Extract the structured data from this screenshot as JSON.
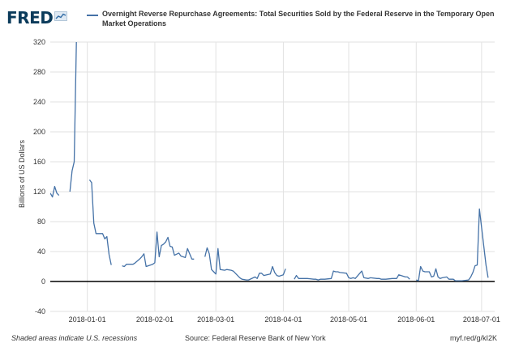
{
  "header": {
    "logo_text": "FRED",
    "logo_icon": "line-chart-icon",
    "legend_label": "Overnight Reverse Repurchase Agreements: Total Securities Sold by the Federal Reserve in the Temporary Open Market Operations",
    "series_color": "#4572a7"
  },
  "footer": {
    "recession_note": "Shaded areas indicate U.S. recessions",
    "source": "Source: Federal Reserve Bank of New York",
    "short_url": "myf.red/g/kI2K"
  },
  "chart_data": {
    "type": "line",
    "title": "Overnight Reverse Repurchase Agreements: Total Securities Sold by the Federal Reserve in the Temporary Open Market Operations",
    "ylabel": "Billions of US Dollars",
    "xlabel": "",
    "ylim": [
      -40,
      320
    ],
    "xlim": [
      "2017-12-15",
      "2018-07-07"
    ],
    "grid": true,
    "yticks": [
      -40,
      0,
      40,
      80,
      120,
      160,
      200,
      240,
      280,
      320
    ],
    "xticks": [
      "2018-01-01",
      "2018-02-01",
      "2018-03-01",
      "2018-04-01",
      "2018-05-01",
      "2018-06-01",
      "2018-07-01"
    ],
    "series": [
      {
        "color": "#4572a7",
        "segments": [
          [
            [
              "2017-12-15",
              118
            ],
            [
              "2017-12-16",
              113
            ],
            [
              "2017-12-17",
              127
            ],
            [
              "2017-12-18",
              118
            ],
            [
              "2017-12-19",
              115
            ]
          ],
          [
            [
              "2017-12-24",
              120
            ],
            [
              "2017-12-25",
              148
            ],
            [
              "2017-12-26",
              160
            ],
            [
              "2017-12-27",
              320
            ]
          ],
          [
            [
              "2018-01-02",
              136
            ],
            [
              "2018-01-03",
              132
            ],
            [
              "2018-01-04",
              78
            ],
            [
              "2018-01-05",
              64
            ],
            [
              "2018-01-08",
              64
            ],
            [
              "2018-01-09",
              57
            ],
            [
              "2018-01-10",
              60
            ],
            [
              "2018-01-11",
              36
            ],
            [
              "2018-01-12",
              22
            ]
          ],
          [
            [
              "2018-01-17",
              21
            ],
            [
              "2018-01-18",
              20
            ],
            [
              "2018-01-19",
              23
            ],
            [
              "2018-01-22",
              23
            ],
            [
              "2018-01-23",
              25
            ],
            [
              "2018-01-25",
              30
            ],
            [
              "2018-01-26",
              33
            ],
            [
              "2018-01-27",
              37
            ],
            [
              "2018-01-28",
              20
            ],
            [
              "2018-01-31",
              23
            ],
            [
              "2018-02-01",
              25
            ],
            [
              "2018-02-02",
              66
            ],
            [
              "2018-02-03",
              33
            ],
            [
              "2018-02-04",
              48
            ],
            [
              "2018-02-05",
              50
            ],
            [
              "2018-02-06",
              53
            ],
            [
              "2018-02-07",
              59
            ],
            [
              "2018-02-08",
              47
            ],
            [
              "2018-02-09",
              46
            ],
            [
              "2018-02-10",
              35
            ],
            [
              "2018-02-12",
              38
            ],
            [
              "2018-02-13",
              34
            ],
            [
              "2018-02-15",
              32
            ],
            [
              "2018-02-16",
              44
            ],
            [
              "2018-02-17",
              37
            ],
            [
              "2018-02-18",
              30
            ],
            [
              "2018-02-19",
              30
            ]
          ],
          [
            [
              "2018-02-24",
              33
            ],
            [
              "2018-02-25",
              45
            ],
            [
              "2018-02-26",
              37
            ],
            [
              "2018-02-27",
              16
            ],
            [
              "2018-02-28",
              13
            ],
            [
              "2018-03-01",
              10
            ],
            [
              "2018-03-02",
              44
            ],
            [
              "2018-03-03",
              16
            ],
            [
              "2018-03-05",
              15
            ],
            [
              "2018-03-06",
              16
            ],
            [
              "2018-03-08",
              15
            ],
            [
              "2018-03-09",
              14
            ],
            [
              "2018-03-12",
              5
            ],
            [
              "2018-03-13",
              3
            ],
            [
              "2018-03-15",
              2
            ],
            [
              "2018-03-16",
              2
            ],
            [
              "2018-03-19",
              6
            ],
            [
              "2018-03-20",
              4
            ],
            [
              "2018-03-21",
              11
            ],
            [
              "2018-03-22",
              11
            ],
            [
              "2018-03-23",
              8
            ],
            [
              "2018-03-26",
              10
            ],
            [
              "2018-03-27",
              20
            ],
            [
              "2018-03-28",
              12
            ],
            [
              "2018-03-29",
              8
            ],
            [
              "2018-03-30",
              7
            ],
            [
              "2018-04-01",
              9
            ],
            [
              "2018-04-02",
              17
            ]
          ],
          [
            [
              "2018-04-06",
              3
            ],
            [
              "2018-04-07",
              8
            ],
            [
              "2018-04-08",
              4
            ],
            [
              "2018-04-10",
              4
            ],
            [
              "2018-04-12",
              4
            ],
            [
              "2018-04-15",
              3
            ],
            [
              "2018-04-16",
              3
            ],
            [
              "2018-04-17",
              2
            ],
            [
              "2018-04-18",
              3
            ],
            [
              "2018-04-19",
              3
            ],
            [
              "2018-04-20",
              3
            ],
            [
              "2018-04-23",
              4
            ],
            [
              "2018-04-24",
              14
            ],
            [
              "2018-04-25",
              13
            ],
            [
              "2018-04-26",
              13
            ],
            [
              "2018-04-27",
              12
            ],
            [
              "2018-04-30",
              11
            ],
            [
              "2018-05-01",
              5
            ],
            [
              "2018-05-02",
              4
            ],
            [
              "2018-05-03",
              5
            ],
            [
              "2018-05-04",
              4
            ],
            [
              "2018-05-07",
              14
            ],
            [
              "2018-05-08",
              5
            ],
            [
              "2018-05-10",
              4
            ],
            [
              "2018-05-11",
              5
            ],
            [
              "2018-05-14",
              4
            ],
            [
              "2018-05-15",
              4
            ],
            [
              "2018-05-16",
              3
            ],
            [
              "2018-05-18",
              3
            ],
            [
              "2018-05-21",
              4
            ],
            [
              "2018-05-22",
              4
            ],
            [
              "2018-05-23",
              4
            ],
            [
              "2018-05-24",
              9
            ],
            [
              "2018-05-25",
              8
            ],
            [
              "2018-05-27",
              6
            ],
            [
              "2018-05-28",
              6
            ],
            [
              "2018-05-29",
              3
            ]
          ],
          [
            [
              "2018-06-01",
              2
            ],
            [
              "2018-06-02",
              1
            ],
            [
              "2018-06-03",
              20
            ],
            [
              "2018-06-04",
              14
            ],
            [
              "2018-06-05",
              13
            ],
            [
              "2018-06-07",
              13
            ],
            [
              "2018-06-08",
              6
            ],
            [
              "2018-06-09",
              7
            ],
            [
              "2018-06-10",
              17
            ],
            [
              "2018-06-11",
              6
            ],
            [
              "2018-06-12",
              4
            ],
            [
              "2018-06-13",
              5
            ],
            [
              "2018-06-15",
              6
            ],
            [
              "2018-06-16",
              3
            ],
            [
              "2018-06-18",
              3
            ],
            [
              "2018-06-19",
              1
            ],
            [
              "2018-06-20",
              1
            ],
            [
              "2018-06-22",
              1
            ],
            [
              "2018-06-25",
              2
            ],
            [
              "2018-06-26",
              6
            ],
            [
              "2018-06-27",
              12
            ],
            [
              "2018-06-28",
              21
            ],
            [
              "2018-06-29",
              22
            ],
            [
              "2018-06-30",
              97
            ],
            [
              "2018-07-01",
              72
            ],
            [
              "2018-07-02",
              47
            ],
            [
              "2018-07-03",
              22
            ],
            [
              "2018-07-04",
              5
            ]
          ]
        ]
      }
    ]
  }
}
